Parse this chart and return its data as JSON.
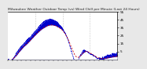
{
  "title": "Milwaukee Weather Outdoor Temp (vs) Wind Chill per Minute (Last 24 Hours)",
  "title_fontsize": 3.2,
  "bg_color": "#e8e8e8",
  "plot_bg_color": "#ffffff",
  "line1_color": "#0000cc",
  "line2_color": "#cc0000",
  "ylim": [
    -5,
    55
  ],
  "yticks": [
    5,
    15,
    25,
    35,
    45,
    55
  ],
  "num_points": 1440,
  "vline_color": "#999999",
  "vline_positions": [
    360,
    720,
    1080
  ],
  "yaxis_side": "right"
}
